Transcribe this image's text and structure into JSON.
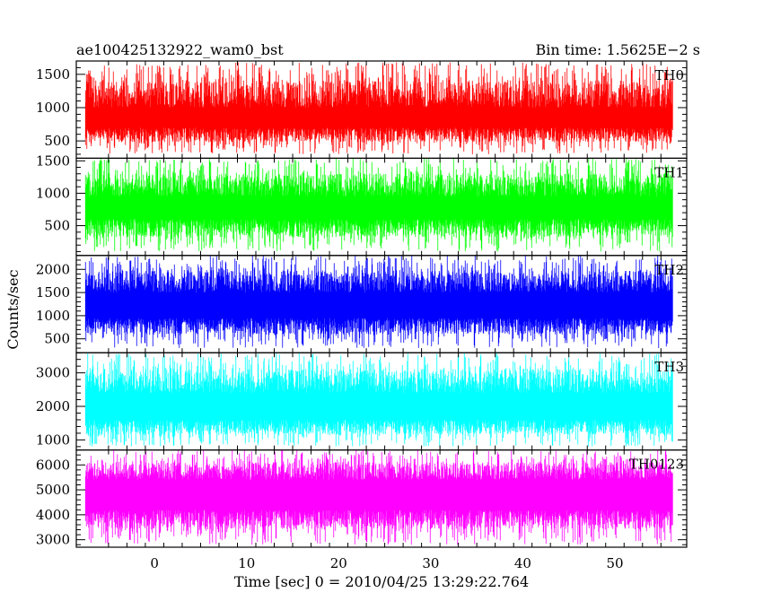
{
  "chart_data": {
    "type": "line",
    "title_left": "ae100425132922_wam0_bst",
    "title_right": "Bin time: 1.5625E−2 s",
    "xlabel": "Time [sec] 0 = 2010/04/25 13:29:22.764",
    "ylabel": "Counts/sec",
    "xlim": [
      -8.5,
      57.8
    ],
    "x_ticks": [
      0,
      10,
      20,
      30,
      40,
      50
    ],
    "x_tick_labels": [
      "0",
      "10",
      "20",
      "30",
      "40",
      "50"
    ],
    "data_x_range": [
      -7.5,
      56.3
    ],
    "bin_time": 0.015625,
    "grid": false,
    "legend": "none",
    "panels": [
      {
        "name": "TH0",
        "color": "#ff0000",
        "ylim": [
          240,
          1700
        ],
        "y_ticks": [
          500,
          1000,
          1500
        ],
        "y_tick_labels": [
          "500",
          "1000",
          "1500"
        ],
        "mean": 850,
        "spread_low": 700,
        "spread_high": 1000,
        "min": 300,
        "max": 1680
      },
      {
        "name": "TH1",
        "color": "#00ff00",
        "ylim": [
          40,
          1540
        ],
        "y_ticks": [
          500,
          1000,
          1500
        ],
        "y_tick_labels": [
          "500",
          "1000",
          "1500"
        ],
        "mean": 780,
        "spread_low": 600,
        "spread_high": 950,
        "min": 100,
        "max": 1540
      },
      {
        "name": "TH2",
        "color": "#0000ff",
        "ylim": [
          200,
          2300
        ],
        "y_ticks": [
          500,
          1000,
          1500,
          2000
        ],
        "y_tick_labels": [
          "500",
          "1000",
          "1500",
          "2000"
        ],
        "mean": 1200,
        "spread_low": 950,
        "spread_high": 1500,
        "min": 300,
        "max": 2300
      },
      {
        "name": "TH3",
        "color": "#00ffff",
        "ylim": [
          700,
          3600
        ],
        "y_ticks": [
          1000,
          2000,
          3000
        ],
        "y_tick_labels": [
          "1000",
          "2000",
          "3000"
        ],
        "mean": 2000,
        "spread_low": 1600,
        "spread_high": 2400,
        "min": 800,
        "max": 3600
      },
      {
        "name": "TH0123",
        "color": "#ff00ff",
        "ylim": [
          2700,
          6600
        ],
        "y_ticks": [
          3000,
          4000,
          5000,
          6000
        ],
        "y_tick_labels": [
          "3000",
          "4000",
          "5000",
          "6000"
        ],
        "mean": 4800,
        "spread_low": 4200,
        "spread_high": 5400,
        "min": 2800,
        "max": 6600
      }
    ]
  }
}
